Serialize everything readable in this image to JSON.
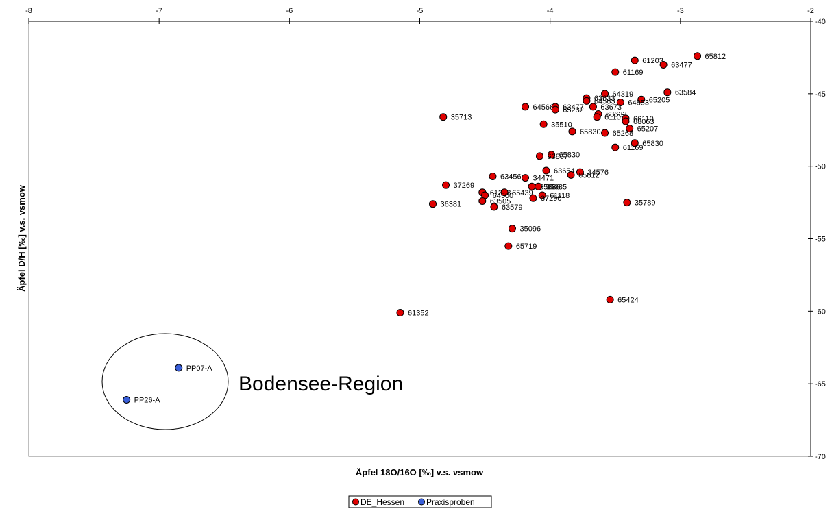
{
  "chart_data": {
    "type": "scatter",
    "title": "",
    "xlabel": "Äpfel 18O/16O [‰] v.s. vsmow",
    "ylabel": "Äpfel D/H [‰] v.s. vsmow",
    "xlim": [
      -8,
      -2
    ],
    "ylim": [
      -70,
      -40
    ],
    "x_ticks": [
      -8,
      -7,
      -6,
      -5,
      -4,
      -3,
      -2
    ],
    "y_ticks": [
      -40,
      -45,
      -50,
      -55,
      -60,
      -65,
      -70
    ],
    "x_axis_position": "top",
    "y_axis_position": "right",
    "grid": false,
    "legend_position": "bottom-center",
    "series": [
      {
        "name": "DE_Hessen",
        "color": "#e00000",
        "points": [
          {
            "x": -2.87,
            "y": -42.4,
            "label": "65812"
          },
          {
            "x": -3.35,
            "y": -42.7,
            "label": "61203"
          },
          {
            "x": -3.13,
            "y": -43.0,
            "label": "63477"
          },
          {
            "x": -3.5,
            "y": -43.5,
            "label": "61169"
          },
          {
            "x": -3.1,
            "y": -44.9,
            "label": "63584"
          },
          {
            "x": -3.58,
            "y": -45.0,
            "label": "64319"
          },
          {
            "x": -3.3,
            "y": -45.4,
            "label": "65205"
          },
          {
            "x": -3.72,
            "y": -45.3,
            "label": "63633"
          },
          {
            "x": -3.72,
            "y": -45.5,
            "label": "64583"
          },
          {
            "x": -3.46,
            "y": -45.6,
            "label": "64853"
          },
          {
            "x": -4.19,
            "y": -45.9,
            "label": "64566"
          },
          {
            "x": -3.96,
            "y": -45.9,
            "label": "63477"
          },
          {
            "x": -3.96,
            "y": -46.1,
            "label": "65232"
          },
          {
            "x": -3.67,
            "y": -45.9,
            "label": "63673"
          },
          {
            "x": -3.63,
            "y": -46.4,
            "label": "63633"
          },
          {
            "x": -3.64,
            "y": -46.6,
            "label": "61107"
          },
          {
            "x": -3.42,
            "y": -46.7,
            "label": "66110"
          },
          {
            "x": -3.42,
            "y": -46.9,
            "label": "68063"
          },
          {
            "x": -4.82,
            "y": -46.6,
            "label": "35713"
          },
          {
            "x": -4.05,
            "y": -47.1,
            "label": "35510"
          },
          {
            "x": -3.39,
            "y": -47.4,
            "label": "65207"
          },
          {
            "x": -3.83,
            "y": -47.6,
            "label": "65830"
          },
          {
            "x": -3.58,
            "y": -47.7,
            "label": "65268"
          },
          {
            "x": -3.35,
            "y": -48.4,
            "label": "65830"
          },
          {
            "x": -3.5,
            "y": -48.7,
            "label": "61169"
          },
          {
            "x": -3.99,
            "y": -49.2,
            "label": "65830"
          },
          {
            "x": -4.08,
            "y": -49.3,
            "label": "63867"
          },
          {
            "x": -4.03,
            "y": -50.3,
            "label": "63654"
          },
          {
            "x": -3.77,
            "y": -50.4,
            "label": "34576"
          },
          {
            "x": -3.84,
            "y": -50.6,
            "label": "65812"
          },
          {
            "x": -4.44,
            "y": -50.7,
            "label": "63456"
          },
          {
            "x": -4.19,
            "y": -50.8,
            "label": "34471"
          },
          {
            "x": -4.8,
            "y": -51.3,
            "label": "37269"
          },
          {
            "x": -4.14,
            "y": -51.4,
            "label": "65886"
          },
          {
            "x": -4.09,
            "y": -51.4,
            "label": "35085"
          },
          {
            "x": -4.52,
            "y": -51.8,
            "label": "61358"
          },
          {
            "x": -4.35,
            "y": -51.8,
            "label": "65439"
          },
          {
            "x": -4.06,
            "y": -52.0,
            "label": "61118"
          },
          {
            "x": -4.5,
            "y": -52.0,
            "label": "64500"
          },
          {
            "x": -4.13,
            "y": -52.2,
            "label": "37290"
          },
          {
            "x": -4.52,
            "y": -52.4,
            "label": "63505"
          },
          {
            "x": -4.9,
            "y": -52.6,
            "label": "36381"
          },
          {
            "x": -3.41,
            "y": -52.5,
            "label": "35789"
          },
          {
            "x": -4.43,
            "y": -52.8,
            "label": "63579"
          },
          {
            "x": -4.29,
            "y": -54.3,
            "label": "35096"
          },
          {
            "x": -4.32,
            "y": -55.5,
            "label": "65719"
          },
          {
            "x": -3.54,
            "y": -59.2,
            "label": "65424"
          },
          {
            "x": -5.15,
            "y": -60.1,
            "label": "61352"
          }
        ]
      },
      {
        "name": "Praxisproben",
        "color": "#3a5fd8",
        "points": [
          {
            "x": -6.85,
            "y": -63.9,
            "label": "PP07-A"
          },
          {
            "x": -7.25,
            "y": -66.1,
            "label": "PP26-A"
          }
        ]
      }
    ],
    "annotations": [
      {
        "text": "Bodensee-Region",
        "x": -6.4,
        "y": -65.3
      }
    ]
  }
}
